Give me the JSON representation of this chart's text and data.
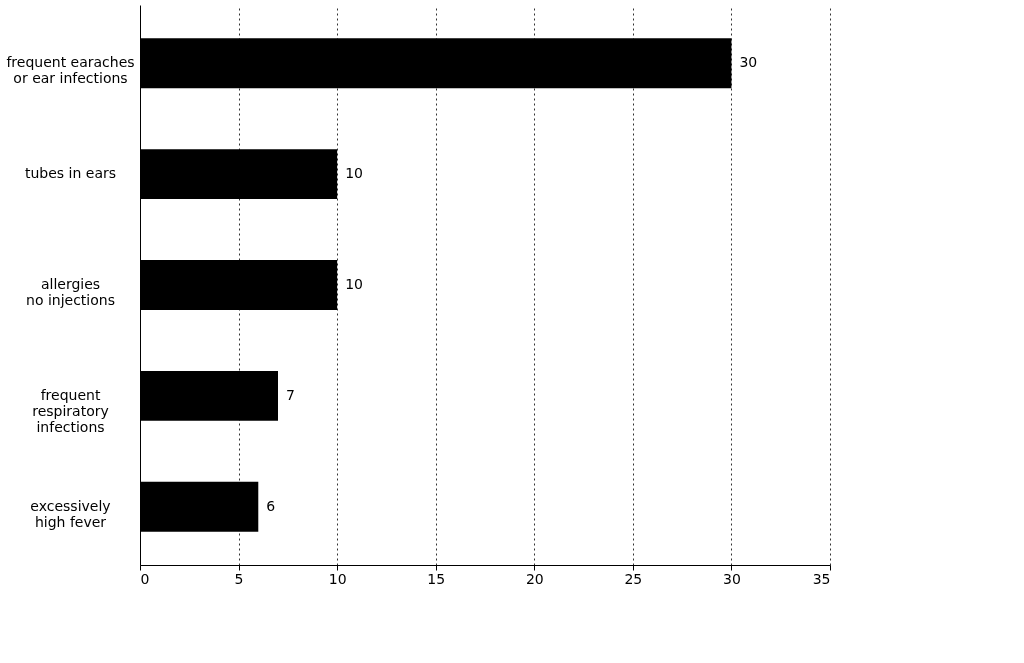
{
  "chart_data": {
    "type": "bar",
    "orientation": "horizontal",
    "categories": [
      "frequent earaches\nor ear infections",
      "tubes in ears",
      "allergies\nno injections",
      "frequent\nrespiratory\ninfections",
      "excessively\nhigh fever"
    ],
    "values": [
      30,
      10,
      10,
      7,
      6
    ],
    "color": "#000000",
    "xlim": [
      0,
      35
    ],
    "xticks": [
      0,
      5,
      10,
      15,
      20,
      25,
      30,
      35
    ],
    "grid": "x",
    "data_labels": true
  }
}
